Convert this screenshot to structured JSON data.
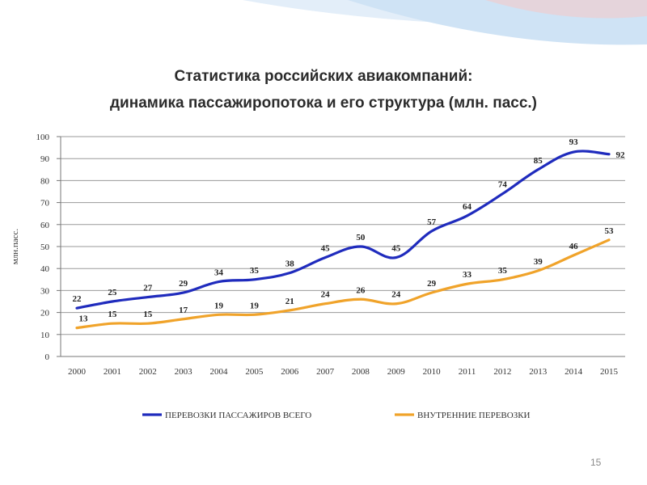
{
  "title_line1": "Статистика российских авиакомпаний:",
  "title_line2": "динамика пассажиропотока и его структура (млн. пасс.)",
  "page_number": "15",
  "colors": {
    "total": "#1f2bbd",
    "domestic": "#f0a32a",
    "decor": "#d6e8f7"
  },
  "chart_data": {
    "type": "line",
    "ylabel": "млн.пасс.",
    "ylim": [
      0,
      100
    ],
    "yticks": [
      0,
      10,
      20,
      30,
      40,
      50,
      60,
      70,
      80,
      90,
      100
    ],
    "grid": true,
    "legend_position": "bottom",
    "categories": [
      "2000",
      "2001",
      "2002",
      "2003",
      "2004",
      "2005",
      "2006",
      "2007",
      "2008",
      "2009",
      "2010",
      "2011",
      "2012",
      "2013",
      "2014",
      "2015"
    ],
    "series": [
      {
        "name": "ПЕРЕВОЗКИ ПАССАЖИРОВ ВСЕГО",
        "color": "#1f2bbd",
        "values": [
          22,
          25,
          27,
          29,
          34,
          35,
          38,
          45,
          50,
          45,
          57,
          64,
          74,
          85,
          93,
          92
        ]
      },
      {
        "name": "ВНУТРЕННИЕ ПЕРЕВОЗКИ",
        "color": "#f0a32a",
        "values": [
          13,
          15,
          15,
          17,
          19,
          19,
          21,
          24,
          26,
          24,
          29,
          33,
          35,
          39,
          46,
          53
        ]
      }
    ]
  }
}
